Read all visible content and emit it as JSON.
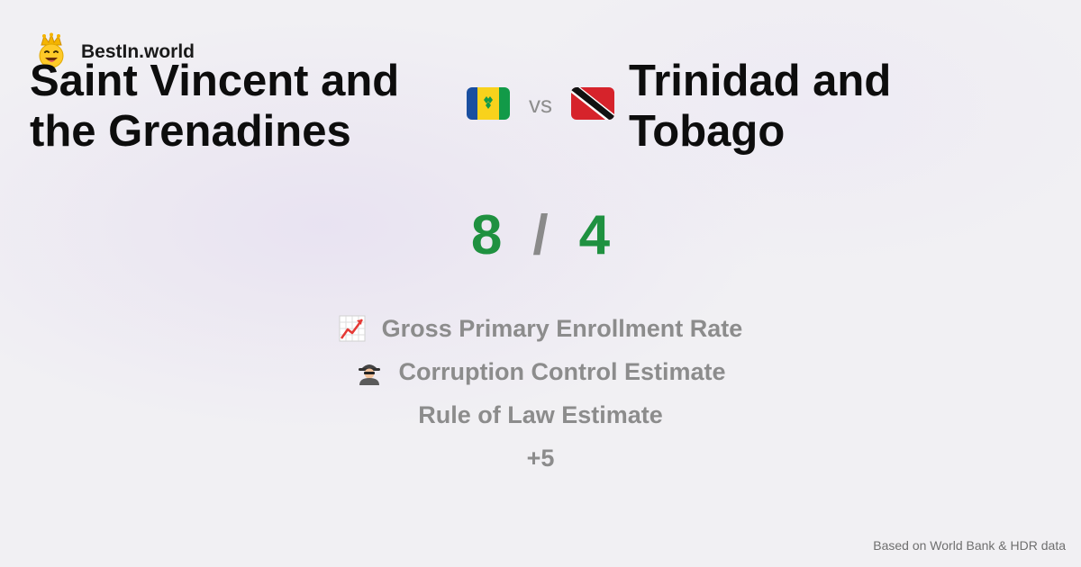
{
  "brand": {
    "name": "BestIn.world",
    "icon": "crowned-smiley-icon"
  },
  "comparison": {
    "left_country": "Saint Vincent and the Grenadines",
    "right_country": "Trinidad and Tobago",
    "left_flag": "saint-vincent-flag-icon",
    "right_flag": "trinidad-tobago-flag-icon",
    "vs_label": "vs"
  },
  "score": {
    "left": "8",
    "separator": "/",
    "right": "4"
  },
  "metrics": [
    {
      "icon": "chart-increasing-icon",
      "label": "Gross Primary Enrollment Rate"
    },
    {
      "icon": "detective-icon",
      "label": "Corruption Control Estimate"
    },
    {
      "icon": "",
      "label": "Rule of Law Estimate"
    }
  ],
  "more_label": "+5",
  "footer": {
    "source_text": "Based on World Bank & HDR data"
  },
  "colors": {
    "score_green": "#1f9140",
    "muted_gray": "#8c8c8c",
    "title_black": "#0d0d0d"
  }
}
